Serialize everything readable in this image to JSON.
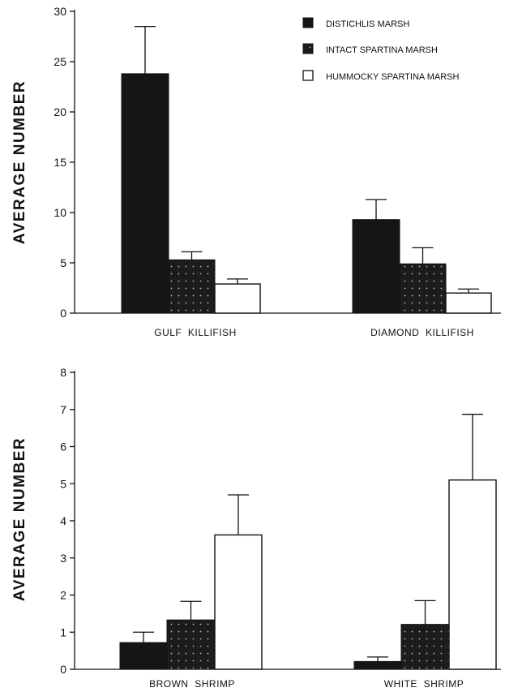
{
  "chart_data": [
    {
      "type": "bar",
      "ylabel": "AVERAGE NUMBER",
      "xlabel": "",
      "ylim": [
        0,
        30
      ],
      "yticks": [
        0,
        5,
        10,
        15,
        20,
        25,
        30
      ],
      "categories": [
        "GULF  KILLIFISH",
        "DIAMOND  KILLIFISH"
      ],
      "series": [
        {
          "name": "DISTICHLIS MARSH",
          "values": [
            23.8,
            9.3
          ],
          "errors": [
            4.7,
            2.0
          ]
        },
        {
          "name": "INTACT SPARTINA MARSH",
          "values": [
            5.3,
            4.9
          ],
          "errors": [
            0.8,
            1.6
          ]
        },
        {
          "name": "HUMMOCKY SPARTINA MARSH",
          "values": [
            2.9,
            2.0
          ],
          "errors": [
            0.5,
            0.4
          ]
        }
      ],
      "legend_position": "top-right",
      "grid": false
    },
    {
      "type": "bar",
      "ylabel": "AVERAGE NUMBER",
      "xlabel": "",
      "ylim": [
        0,
        8
      ],
      "yticks": [
        0,
        1,
        2,
        3,
        4,
        5,
        6,
        7,
        8
      ],
      "categories": [
        "BROWN  SHRIMP",
        "WHITE  SHRIMP"
      ],
      "series": [
        {
          "name": "DISTICHLIS MARSH",
          "values": [
            0.72,
            0.21
          ],
          "errors": [
            0.28,
            0.12
          ]
        },
        {
          "name": "INTACT SPARTINA MARSH",
          "values": [
            1.33,
            1.21
          ],
          "errors": [
            0.5,
            0.64
          ]
        },
        {
          "name": "HUMMOCKY SPARTINA MARSH",
          "values": [
            3.62,
            5.1
          ],
          "errors": [
            1.08,
            1.77
          ]
        }
      ],
      "grid": false
    }
  ],
  "legend": {
    "items": [
      {
        "label": "DISTICHLIS MARSH",
        "style": "solid"
      },
      {
        "label": "INTACT SPARTINA MARSH",
        "style": "dotted"
      },
      {
        "label": "HUMMOCKY SPARTINA MARSH",
        "style": "open"
      }
    ]
  },
  "colors": {
    "solid": "#151515",
    "dotted": "#1c1c1c",
    "open": "#ffffff",
    "ink": "#111111"
  }
}
